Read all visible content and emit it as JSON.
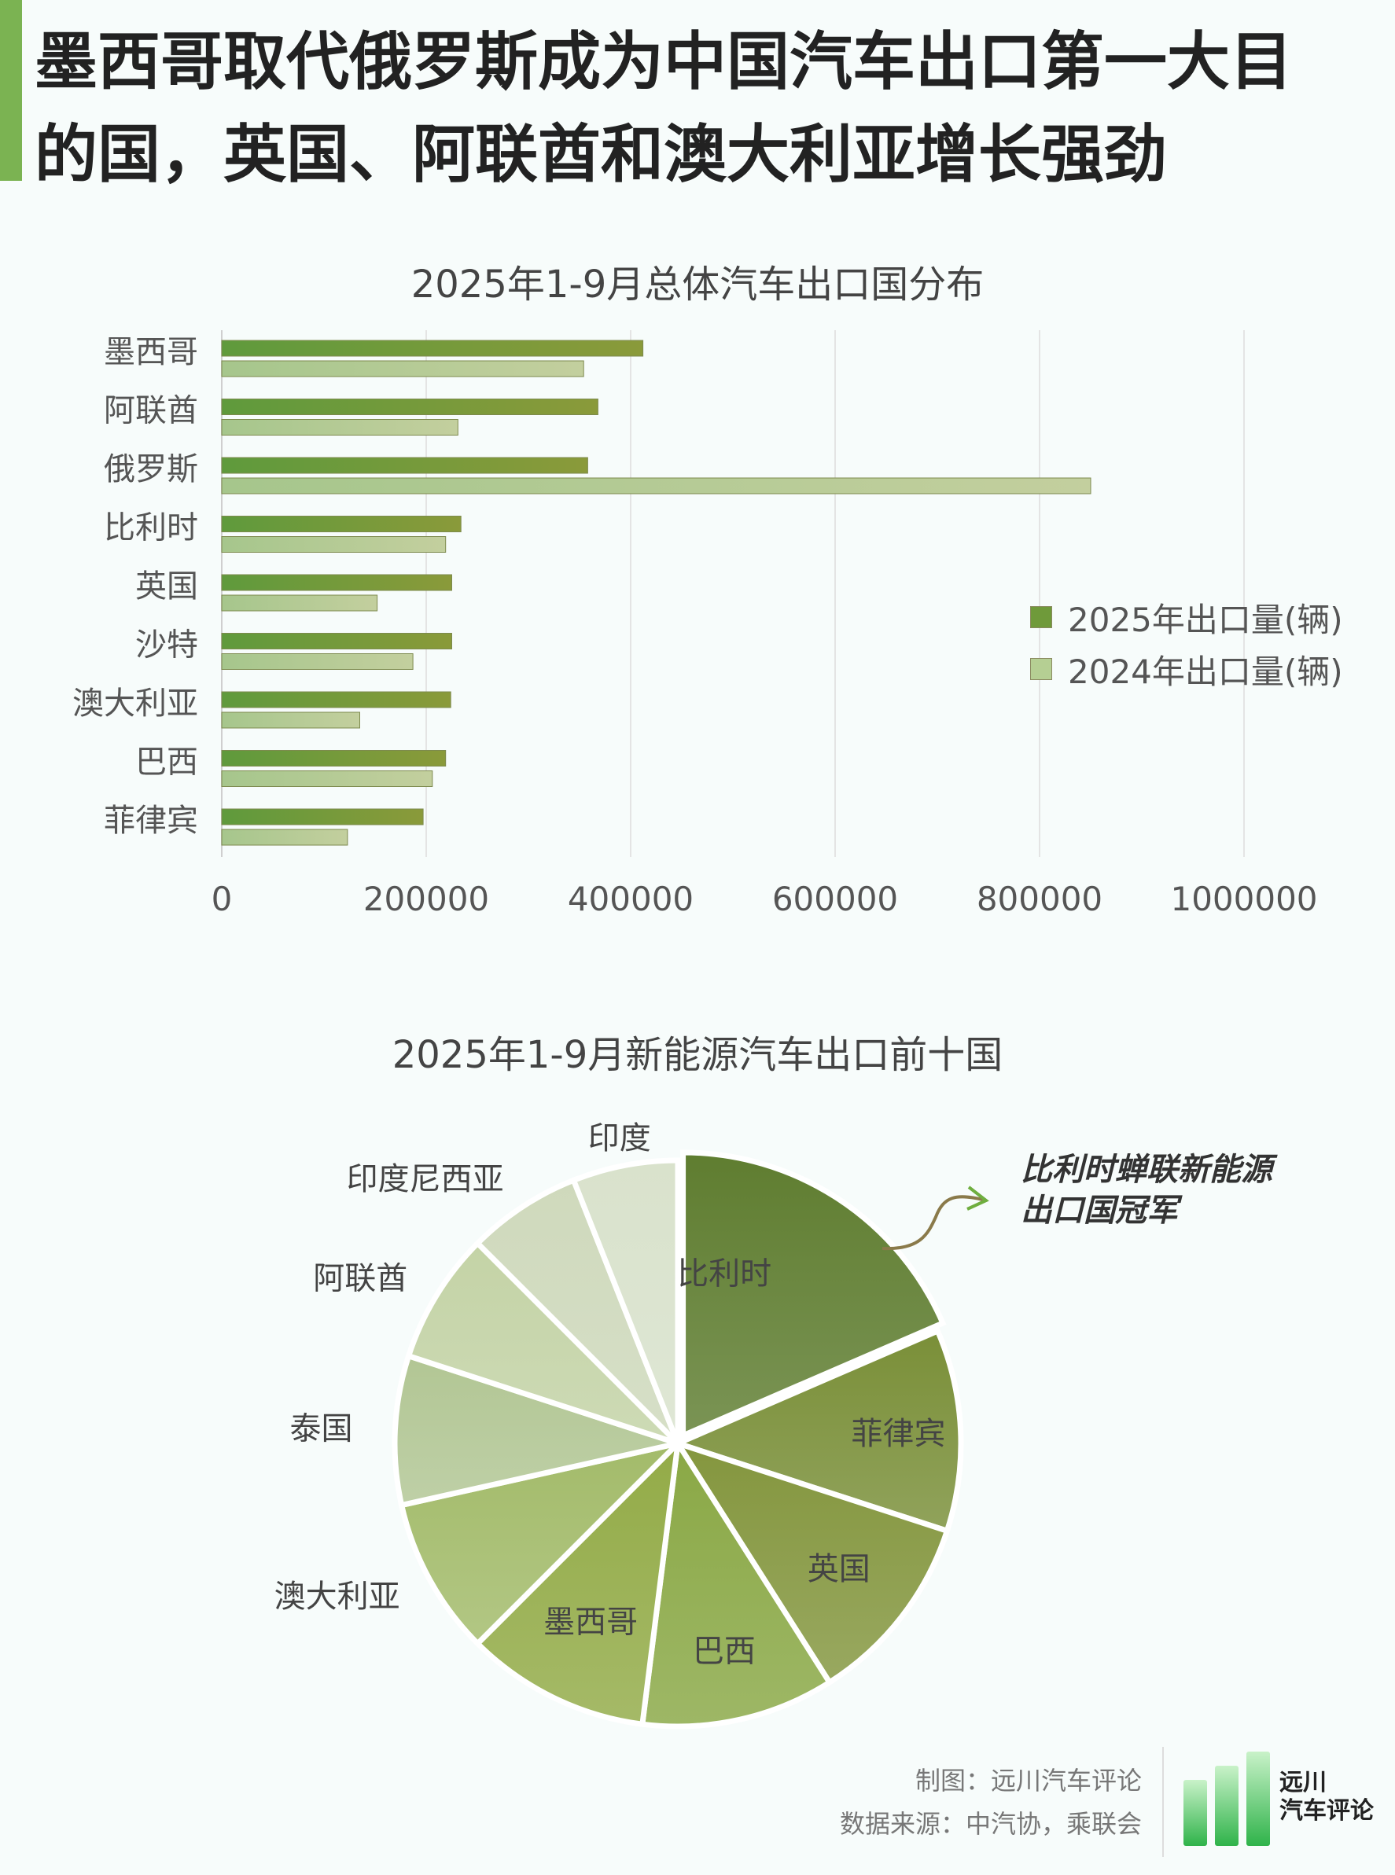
{
  "headline": "墨西哥取代俄罗斯成为中国汽车出口第一大目的国，英国、阿联酋和澳大利亚增长强劲",
  "annotation": {
    "line1": "比利时蝉联新能源",
    "line2": "出口国冠军"
  },
  "footer": {
    "maker": "制图：远川汽车评论",
    "source": "数据来源：中汽协，乘联会"
  },
  "logo": {
    "line1": "远川",
    "line2": "汽车评论"
  },
  "colors": {
    "accent": "#7bb352",
    "series_2025": "#6f9a3a",
    "series_2024": "#b5cf93"
  },
  "chart_data": [
    {
      "type": "bar",
      "orientation": "horizontal",
      "title": "2025年1-9月总体汽车出口国分布",
      "categories": [
        "墨西哥",
        "阿联酋",
        "俄罗斯",
        "比利时",
        "英国",
        "沙特",
        "澳大利亚",
        "巴西",
        "菲律宾"
      ],
      "series": [
        {
          "name": "2025年出口量(辆)",
          "values": [
            412000,
            368000,
            358000,
            234000,
            225000,
            225000,
            224000,
            219000,
            197000
          ]
        },
        {
          "name": "2024年出口量(辆)",
          "values": [
            354000,
            231000,
            850000,
            219000,
            152000,
            187000,
            135000,
            206000,
            123000
          ]
        }
      ],
      "xlim": [
        0,
        1000000
      ],
      "xticks": [
        0,
        200000,
        400000,
        600000,
        800000,
        1000000
      ],
      "tick_labels": [
        "0",
        "200000",
        "400000",
        "600000",
        "800000",
        "1000000"
      ],
      "grid": true,
      "legend_position": "right"
    },
    {
      "type": "pie",
      "title": "2025年1-9月新能源汽车出口前十国",
      "labels": [
        "比利时",
        "菲律宾",
        "英国",
        "巴西",
        "墨西哥",
        "澳大利亚",
        "泰国",
        "阿联酋",
        "印度尼西亚",
        "印度"
      ],
      "values": [
        18.5,
        11.5,
        11.0,
        11.0,
        10.5,
        9.0,
        8.5,
        7.5,
        6.5,
        6.0
      ],
      "colors": [
        "#5f7d30",
        "#7a8f38",
        "#84963e",
        "#8aa845",
        "#93ab47",
        "#a3bb6a",
        "#b2c694",
        "#c4d3a6",
        "#cfd9bc",
        "#d9e2cc"
      ],
      "legend_position": "none"
    }
  ]
}
